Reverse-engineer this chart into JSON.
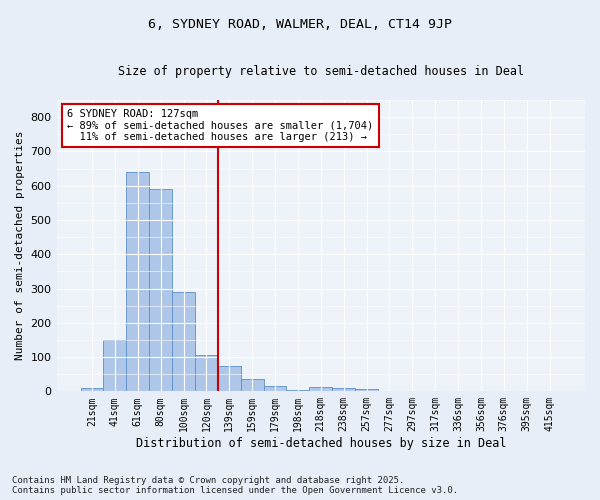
{
  "title": "6, SYDNEY ROAD, WALMER, DEAL, CT14 9JP",
  "subtitle": "Size of property relative to semi-detached houses in Deal",
  "xlabel": "Distribution of semi-detached houses by size in Deal",
  "ylabel": "Number of semi-detached properties",
  "bar_labels": [
    "21sqm",
    "41sqm",
    "61sqm",
    "80sqm",
    "100sqm",
    "120sqm",
    "139sqm",
    "159sqm",
    "179sqm",
    "198sqm",
    "218sqm",
    "238sqm",
    "257sqm",
    "277sqm",
    "297sqm",
    "317sqm",
    "336sqm",
    "356sqm",
    "376sqm",
    "395sqm",
    "415sqm"
  ],
  "bar_values": [
    10,
    150,
    640,
    590,
    290,
    105,
    75,
    35,
    15,
    5,
    12,
    10,
    7,
    0,
    0,
    0,
    0,
    0,
    0,
    0,
    0
  ],
  "bar_color": "#aec6e8",
  "bar_edge_color": "#5b8fc9",
  "vline_color": "#cc0000",
  "annotation_text": "6 SYDNEY ROAD: 127sqm\n← 89% of semi-detached houses are smaller (1,704)\n  11% of semi-detached houses are larger (213) →",
  "annotation_box_color": "#ffffff",
  "annotation_box_edge": "#cc0000",
  "ylim": [
    0,
    850
  ],
  "yticks": [
    0,
    100,
    200,
    300,
    400,
    500,
    600,
    700,
    800
  ],
  "footer": "Contains HM Land Registry data © Crown copyright and database right 2025.\nContains public sector information licensed under the Open Government Licence v3.0.",
  "bg_color": "#e8eef7",
  "plot_bg_color": "#eef2f9"
}
